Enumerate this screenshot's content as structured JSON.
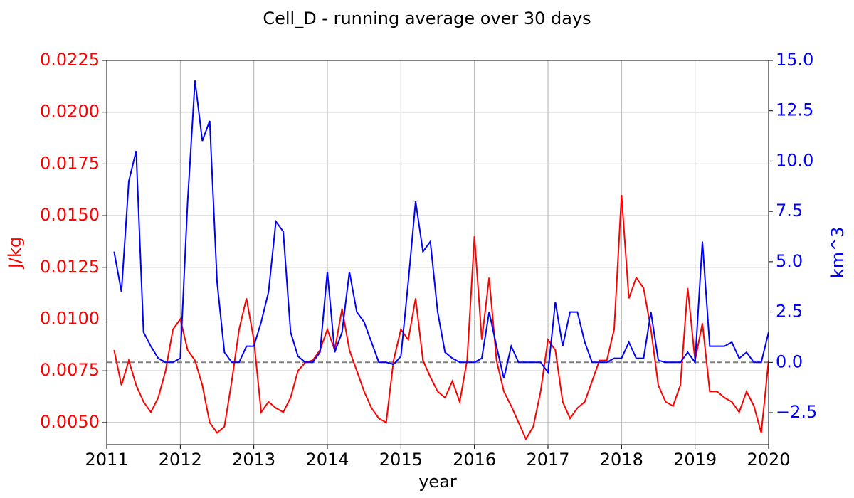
{
  "chart_data": {
    "type": "line",
    "title": "Cell_D - running average over 30 days",
    "xlabel": "year",
    "ylabel": "J/kg",
    "y2label": "km^3",
    "x": [
      2011.1,
      2011.2,
      2011.3,
      2011.4,
      2011.5,
      2011.6,
      2011.7,
      2011.8,
      2011.9,
      2012.0,
      2012.1,
      2012.2,
      2012.3,
      2012.4,
      2012.5,
      2012.6,
      2012.7,
      2012.8,
      2012.9,
      2013.0,
      2013.1,
      2013.2,
      2013.3,
      2013.4,
      2013.5,
      2013.6,
      2013.7,
      2013.8,
      2013.9,
      2014.0,
      2014.1,
      2014.2,
      2014.3,
      2014.4,
      2014.5,
      2014.6,
      2014.7,
      2014.8,
      2014.9,
      2015.0,
      2015.1,
      2015.2,
      2015.3,
      2015.4,
      2015.5,
      2015.6,
      2015.7,
      2015.8,
      2015.9,
      2016.0,
      2016.1,
      2016.2,
      2016.3,
      2016.4,
      2016.5,
      2016.6,
      2016.7,
      2016.8,
      2016.9,
      2017.0,
      2017.1,
      2017.2,
      2017.3,
      2017.4,
      2017.5,
      2017.6,
      2017.7,
      2017.8,
      2017.9,
      2018.0,
      2018.1,
      2018.2,
      2018.3,
      2018.4,
      2018.5,
      2018.6,
      2018.7,
      2018.8,
      2018.9,
      2019.0,
      2019.1,
      2019.2,
      2019.3,
      2019.4,
      2019.5,
      2019.6,
      2019.7,
      2019.8,
      2019.9,
      2020.0
    ],
    "series": [
      {
        "name": "J/kg",
        "color": "#ff0000",
        "axis": "y",
        "values": [
          0.0085,
          0.0068,
          0.008,
          0.0068,
          0.006,
          0.0055,
          0.0062,
          0.0075,
          0.0095,
          0.01,
          0.0085,
          0.008,
          0.0068,
          0.005,
          0.0045,
          0.0048,
          0.007,
          0.0095,
          0.011,
          0.009,
          0.0055,
          0.006,
          0.0057,
          0.0055,
          0.0062,
          0.0075,
          0.0079,
          0.008,
          0.0085,
          0.0095,
          0.0085,
          0.0105,
          0.0085,
          0.0075,
          0.0065,
          0.0057,
          0.0052,
          0.005,
          0.008,
          0.0095,
          0.009,
          0.011,
          0.008,
          0.0072,
          0.0065,
          0.0062,
          0.007,
          0.006,
          0.008,
          0.014,
          0.009,
          0.012,
          0.008,
          0.0065,
          0.0058,
          0.005,
          0.0042,
          0.0048,
          0.0065,
          0.009,
          0.0085,
          0.006,
          0.0052,
          0.0057,
          0.006,
          0.007,
          0.008,
          0.008,
          0.0095,
          0.016,
          0.011,
          0.012,
          0.0115,
          0.0095,
          0.0068,
          0.006,
          0.0058,
          0.0068,
          0.0115,
          0.008,
          0.0098,
          0.0065,
          0.0065,
          0.0062,
          0.006,
          0.0055,
          0.0065,
          0.0058,
          0.0045,
          0.008
        ]
      },
      {
        "name": "km^3",
        "color": "#0000ff",
        "axis": "y2",
        "values": [
          5.5,
          3.5,
          9.0,
          10.5,
          1.5,
          0.8,
          0.2,
          0.0,
          0.0,
          0.2,
          8.0,
          14.0,
          11.0,
          12.0,
          4.0,
          0.5,
          0.0,
          0.0,
          0.8,
          0.8,
          2.0,
          3.5,
          7.0,
          6.5,
          1.5,
          0.3,
          0.0,
          0.0,
          0.5,
          4.5,
          0.5,
          1.5,
          4.5,
          2.5,
          2.0,
          1.0,
          0.0,
          0.0,
          -0.1,
          0.3,
          4.0,
          8.0,
          5.5,
          6.0,
          2.5,
          0.5,
          0.2,
          0.0,
          0.0,
          0.0,
          0.2,
          2.5,
          0.8,
          -0.8,
          0.8,
          0.0,
          0.0,
          0.0,
          0.0,
          -0.5,
          3.0,
          0.8,
          2.5,
          2.5,
          1.0,
          0.0,
          0.0,
          0.0,
          0.2,
          0.2,
          1.0,
          0.2,
          0.2,
          2.5,
          0.1,
          0.0,
          0.0,
          0.0,
          0.5,
          0.0,
          6.0,
          0.8,
          0.8,
          0.8,
          1.0,
          0.2,
          0.5,
          0.0,
          0.0,
          1.5
        ]
      }
    ],
    "hline": {
      "value": 0,
      "axis": "y2",
      "color": "#808080"
    },
    "xlim": [
      2011,
      2020
    ],
    "xticks": [
      2011,
      2012,
      2013,
      2014,
      2015,
      2016,
      2017,
      2018,
      2019,
      2020
    ],
    "ylim": [
      0.00393,
      0.0225
    ],
    "yticks": [
      {
        "value": 0.005,
        "label": "0.0050"
      },
      {
        "value": 0.0075,
        "label": "0.0075"
      },
      {
        "value": 0.01,
        "label": "0.0100"
      },
      {
        "value": 0.0125,
        "label": "0.0125"
      },
      {
        "value": 0.015,
        "label": "0.0150"
      },
      {
        "value": 0.0175,
        "label": "0.0175"
      },
      {
        "value": 0.02,
        "label": "0.0200"
      },
      {
        "value": 0.0225,
        "label": "0.0225"
      }
    ],
    "y2lim": [
      -4.09,
      15
    ],
    "y2ticks": [
      {
        "value": -2.5,
        "label": "−2.5"
      },
      {
        "value": 0,
        "label": "0.0"
      },
      2.5,
      {
        "value": 5,
        "label": "5.0"
      },
      7.5,
      {
        "value": 10,
        "label": "10.0"
      },
      12.5,
      {
        "value": 15,
        "label": "15.0"
      }
    ],
    "grid": true
  }
}
